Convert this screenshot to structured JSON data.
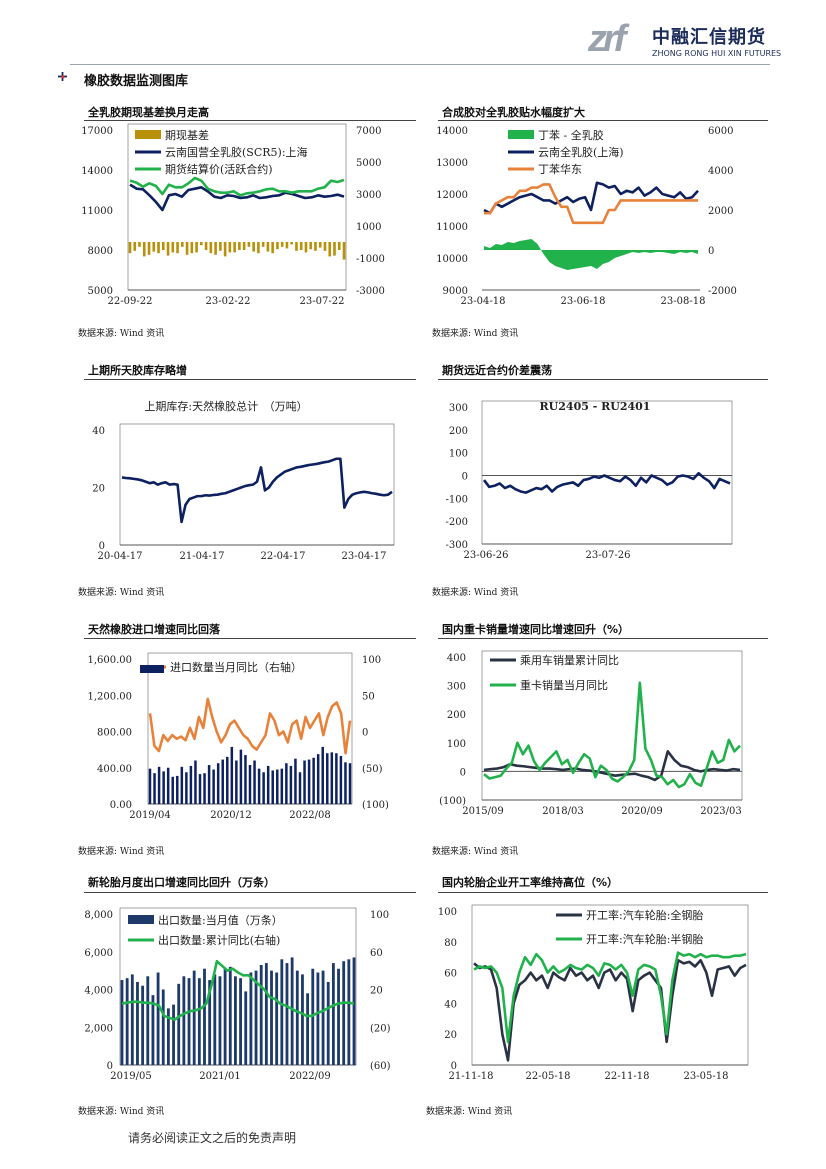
{
  "header": {
    "logo_mark": "zrf",
    "logo_cn": "中融汇信期货",
    "logo_en": "ZHONG RONG HUI XIN FUTURES",
    "section_title": "橡胶数据监测图库"
  },
  "source_label": "数据来源: Wind 资讯",
  "footer": "请务必阅读正文之后的免责声明",
  "panels": [
    {
      "title": "全乳胶期现基差换月走高"
    },
    {
      "title": "合成胶对全乳胶贴水幅度扩大"
    },
    {
      "title": "上期所天胶库存略增"
    },
    {
      "title": "期货远近合约价差震荡"
    },
    {
      "title": "天然橡胶进口增速同比回落"
    },
    {
      "title": "国内重卡销量增速同比增速回升（%）"
    },
    {
      "title": "新轮胎月度出口增速同比回升（万条）"
    },
    {
      "title": "国内轮胎企业开工率维持高位（%）"
    }
  ],
  "chart_data": [
    {
      "type": "line",
      "legend": [
        "期现基差",
        "云南国营全乳胶(SCR5):上海",
        "期货结算价(活跃合约)"
      ],
      "left_ticks": [
        "17000",
        "14000",
        "11000",
        "8000",
        "5000"
      ],
      "right_ticks": [
        "7000",
        "5000",
        "3000",
        "1000",
        "-1000",
        "-3000"
      ],
      "x_ticks": [
        "22-09-22",
        "23-02-22",
        "23-07-22"
      ],
      "ylim": [
        5000,
        17000
      ],
      "y2lim": [
        -3000,
        7000
      ],
      "series": [
        {
          "name": "期现基差",
          "axis": "right",
          "kind": "bar",
          "color": "#b8900a",
          "values": [
            -700,
            -550,
            -300,
            -900,
            -800,
            -600,
            -700,
            -500,
            -850,
            -650,
            -700,
            -300,
            -800,
            -700,
            -650,
            -200,
            -500,
            -700,
            -800,
            -550,
            -900,
            -650,
            -650,
            -500,
            -500,
            -300,
            -600,
            -700,
            -300,
            -600,
            -700,
            -450,
            -300,
            -400,
            -150,
            -550,
            -500,
            -650,
            -450,
            -550,
            -350,
            -550,
            -900,
            -850,
            -500,
            -1100
          ]
        },
        {
          "name": "云南国营全乳胶(SCR5):上海",
          "axis": "left",
          "color": "#0d2060",
          "values": [
            12900,
            12600,
            12550,
            12100,
            11600,
            11000,
            12100,
            12200,
            12000,
            12500,
            12600,
            12700,
            12400,
            12000,
            11900,
            12100,
            12050,
            11900,
            11950,
            12100,
            11900,
            11950,
            12050,
            12100,
            12300,
            12200,
            12050,
            11900,
            11950,
            12100,
            12000,
            12050,
            12150,
            12000
          ]
        },
        {
          "name": "期货结算价(活跃合约)",
          "axis": "left",
          "color": "#22b24c",
          "values": [
            13200,
            13050,
            12750,
            13000,
            12800,
            12200,
            12900,
            12700,
            12700,
            13000,
            13400,
            13200,
            12600,
            12400,
            12300,
            12300,
            12400,
            12100,
            12250,
            12300,
            12400,
            12550,
            12600,
            12400,
            12400,
            12300,
            12400,
            12400,
            12400,
            12600,
            12700,
            13200,
            13100,
            13250
          ]
        }
      ]
    },
    {
      "type": "line",
      "legend": [
        "丁苯 - 全乳胶",
        "云南全乳胶(上海)",
        "丁苯华东"
      ],
      "left_ticks": [
        "14000",
        "13000",
        "12000",
        "11000",
        "10000",
        "9000"
      ],
      "right_ticks": [
        "6000",
        "4000",
        "2000",
        "0",
        "-2000"
      ],
      "x_ticks": [
        "23-04-18",
        "23-06-18",
        "23-08-18"
      ],
      "ylim": [
        9000,
        14000
      ],
      "y2lim": [
        -2000,
        6000
      ],
      "series": [
        {
          "name": "丁苯 - 全乳胶",
          "axis": "right",
          "kind": "area",
          "color": "#22b24c",
          "values": [
            200,
            100,
            300,
            250,
            400,
            350,
            450,
            500,
            550,
            300,
            -200,
            -600,
            -800,
            -900,
            -1000,
            -950,
            -900,
            -850,
            -800,
            -950,
            -700,
            -600,
            -400,
            -300,
            -200,
            -100,
            -150,
            -100,
            -150,
            -100,
            -100,
            -150,
            -200,
            -100,
            -150,
            -100,
            -200
          ]
        },
        {
          "name": "云南全乳胶(上海)",
          "axis": "left",
          "color": "#0d2060",
          "values": [
            11500,
            11400,
            11700,
            11600,
            11700,
            11800,
            11900,
            11950,
            12000,
            11900,
            11800,
            11800,
            11700,
            11800,
            11900,
            11750,
            11850,
            11900,
            11500,
            12350,
            12300,
            12200,
            12250,
            12000,
            12100,
            12050,
            12200,
            11950,
            12050,
            12200,
            12000,
            11950,
            11900,
            12050,
            11850,
            11900,
            12100
          ]
        },
        {
          "name": "丁苯华东",
          "axis": "left",
          "color": "#e8823a",
          "values": [
            11400,
            11400,
            11700,
            11800,
            11900,
            11900,
            12100,
            12100,
            12200,
            12200,
            12300,
            12300,
            11900,
            11600,
            11600,
            11100,
            11100,
            11100,
            11100,
            11100,
            11100,
            11500,
            11500,
            11800,
            11800,
            11800,
            11800,
            11800,
            11800,
            11800,
            11800,
            11800,
            11800,
            11800,
            11800,
            11800,
            11800
          ]
        }
      ]
    },
    {
      "type": "line",
      "title": "上期库存:天然橡胶总计　（万吨）",
      "left_ticks": [
        "40",
        "20",
        "0"
      ],
      "x_ticks": [
        "20-04-17",
        "21-04-17",
        "22-04-17",
        "23-04-17"
      ],
      "ylim": [
        0,
        40
      ],
      "series": [
        {
          "name": "上期库存:天然橡胶总计",
          "axis": "left",
          "color": "#0d2060",
          "values": [
            23.5,
            23.3,
            23.2,
            23,
            22.8,
            22.5,
            22,
            21.5,
            21.8,
            21,
            21.5,
            21.8,
            21,
            21.2,
            21,
            8,
            14,
            16,
            16.5,
            17,
            17,
            17.3,
            17.2,
            17.4,
            17.5,
            17.8,
            18,
            18.5,
            19,
            19.5,
            20,
            20.5,
            20.8,
            21,
            22,
            27,
            19,
            20,
            22,
            23.5,
            24.5,
            25.5,
            26,
            26.5,
            27,
            27.2,
            27.5,
            27.8,
            28,
            28.2,
            28.5,
            28.8,
            29,
            29.5,
            30,
            30,
            13,
            16,
            17.5,
            18,
            18.3,
            18.5,
            18.3,
            18,
            17.8,
            17.5,
            17.3,
            17.5,
            18.5
          ]
        }
      ]
    },
    {
      "type": "line",
      "title": "RU2405 - RU2401",
      "left_ticks": [
        "300",
        "200",
        "100",
        "0",
        "-100",
        "-200",
        "-300"
      ],
      "x_ticks": [
        "23-06-26",
        "23-07-26"
      ],
      "ylim": [
        -300,
        300
      ],
      "series": [
        {
          "name": "RU2405 - RU2401",
          "axis": "left",
          "color": "#0d2060",
          "values": [
            -20,
            -50,
            -45,
            -35,
            -55,
            -45,
            -60,
            -70,
            -75,
            -65,
            -55,
            -60,
            -45,
            -70,
            -50,
            -40,
            -35,
            -30,
            -45,
            -20,
            -15,
            -5,
            -10,
            0,
            -10,
            -20,
            -25,
            -5,
            -20,
            -45,
            -10,
            -30,
            0,
            -10,
            -20,
            -40,
            -30,
            -5,
            0,
            -5,
            -15,
            10,
            -10,
            -25,
            -55,
            -15,
            -25,
            -35
          ]
        }
      ]
    },
    {
      "type": "bar",
      "legend": [
        "进口数量当月同比（右轴）"
      ],
      "left_ticks": [
        "1,600.00",
        "1,200.00",
        "800.00",
        "400.00",
        "0.00"
      ],
      "right_ticks": [
        "100",
        "50",
        "0",
        "(50)",
        "(100)"
      ],
      "x_ticks": [
        "2019/04",
        "2020/12",
        "2022/08"
      ],
      "ylim": [
        0,
        1600
      ],
      "y2lim": [
        -100,
        100
      ],
      "series": [
        {
          "name": "进口数量",
          "axis": "left",
          "kind": "bar",
          "color": "#0d2060",
          "values": [
            390,
            340,
            410,
            360,
            400,
            300,
            310,
            410,
            350,
            420,
            480,
            330,
            340,
            430,
            380,
            450,
            490,
            520,
            630,
            480,
            600,
            540,
            430,
            480,
            390,
            350,
            420,
            370,
            380,
            390,
            450,
            420,
            500,
            350,
            480,
            490,
            510,
            550,
            630,
            560,
            570,
            560,
            530,
            460,
            450
          ]
        },
        {
          "name": "进口数量当月同比（右轴）",
          "axis": "right",
          "color": "#e8823a",
          "values": [
            25,
            -20,
            -27,
            -5,
            -13,
            -5,
            -10,
            -7,
            -12,
            5,
            -10,
            20,
            5,
            45,
            20,
            0,
            -15,
            -5,
            10,
            15,
            5,
            -5,
            -10,
            -20,
            -25,
            -15,
            -5,
            25,
            15,
            -5,
            0,
            -15,
            10,
            15,
            -10,
            20,
            5,
            15,
            25,
            -5,
            20,
            35,
            40,
            25,
            -30,
            15
          ]
        }
      ]
    },
    {
      "type": "line",
      "legend": [
        "乘用车销量累计同比",
        "重卡销量当月同比"
      ],
      "left_ticks": [
        "400",
        "300",
        "200",
        "100",
        "0",
        "(100)"
      ],
      "x_ticks": [
        "2015/09",
        "2018/03",
        "2020/09",
        "2023/03"
      ],
      "ylim": [
        -100,
        400
      ],
      "series": [
        {
          "name": "乘用车销量累计同比",
          "axis": "left",
          "color": "#2a3344",
          "values": [
            5,
            8,
            10,
            15,
            25,
            20,
            18,
            15,
            12,
            10,
            10,
            8,
            5,
            8,
            10,
            5,
            3,
            0,
            -5,
            -10,
            -15,
            -12,
            -10,
            -8,
            -15,
            -20,
            -30,
            -15,
            70,
            40,
            20,
            15,
            5,
            0,
            5,
            8,
            5,
            3,
            8,
            5
          ]
        },
        {
          "name": "重卡销量当月同比",
          "axis": "left",
          "color": "#22b24c",
          "values": [
            -10,
            -25,
            -20,
            -15,
            10,
            30,
            100,
            60,
            90,
            35,
            5,
            30,
            50,
            70,
            25,
            40,
            -5,
            30,
            60,
            45,
            -20,
            20,
            5,
            -25,
            -35,
            -20,
            0,
            40,
            310,
            80,
            40,
            -15,
            -20,
            -45,
            -30,
            -55,
            -45,
            -10,
            -40,
            -50,
            10,
            70,
            30,
            40,
            110,
            70,
            90
          ]
        }
      ]
    },
    {
      "type": "bar",
      "legend": [
        "出口数量:当月值（万条）",
        "出口数量:累计同比(右轴)"
      ],
      "left_ticks": [
        "8,000",
        "6,000",
        "4,000",
        "2,000",
        "0"
      ],
      "right_ticks": [
        "100",
        "60",
        "20",
        "(20)",
        "(60)"
      ],
      "x_ticks": [
        "2019/05",
        "2021/01",
        "2022/09"
      ],
      "ylim": [
        0,
        8000
      ],
      "y2lim": [
        -60,
        100
      ],
      "series": [
        {
          "name": "出口数量:当月值（万条）",
          "axis": "left",
          "kind": "bar",
          "color": "#1d3a6b",
          "values": [
            4500,
            4600,
            4800,
            4400,
            4200,
            4700,
            3700,
            4900,
            4000,
            3000,
            3200,
            4300,
            4700,
            4600,
            5000,
            4600,
            5100,
            4500,
            4800,
            4700,
            5100,
            5200,
            4700,
            4600,
            3900,
            4900,
            5000,
            5300,
            5400,
            5000,
            4900,
            5600,
            5400,
            5700,
            5000,
            4800,
            3800,
            5100,
            4900,
            5000,
            4400,
            5400,
            5100,
            5500,
            5600,
            5700
          ]
        },
        {
          "name": "出口数量:累计同比(右轴)",
          "axis": "right",
          "color": "#22b24c",
          "values": [
            5,
            6,
            7,
            7,
            6,
            6,
            5,
            3,
            -8,
            -10,
            -12,
            -8,
            -5,
            -3,
            -2,
            0,
            5,
            25,
            50,
            45,
            40,
            42,
            38,
            35,
            35,
            30,
            25,
            20,
            12,
            10,
            5,
            3,
            0,
            -3,
            -5,
            -8,
            -8,
            -5,
            -3,
            0,
            3,
            5,
            6,
            6,
            5
          ]
        }
      ]
    },
    {
      "type": "line",
      "legend": [
        "开工率:汽车轮胎:全钢胎",
        "开工率:汽车轮胎:半钢胎"
      ],
      "left_ticks": [
        "100",
        "80",
        "60",
        "40",
        "20",
        "0"
      ],
      "x_ticks": [
        "21-11-18",
        "22-05-18",
        "22-11-18",
        "23-05-18"
      ],
      "ylim": [
        0,
        100
      ],
      "series": [
        {
          "name": "开工率:汽车轮胎:全钢胎",
          "axis": "left",
          "color": "#2a3344",
          "values": [
            66,
            63,
            64,
            62,
            50,
            20,
            3,
            40,
            52,
            55,
            60,
            55,
            58,
            50,
            60,
            57,
            55,
            63,
            58,
            60,
            55,
            58,
            50,
            60,
            62,
            55,
            60,
            56,
            35,
            55,
            58,
            60,
            55,
            50,
            15,
            45,
            68,
            66,
            67,
            64,
            68,
            60,
            45,
            62,
            63,
            64,
            58,
            63,
            65
          ]
        },
        {
          "name": "开工率:汽车轮胎:半钢胎",
          "axis": "left",
          "color": "#22b24c",
          "values": [
            62,
            64,
            63,
            64,
            60,
            50,
            15,
            45,
            60,
            70,
            65,
            72,
            68,
            60,
            64,
            60,
            62,
            65,
            63,
            62,
            65,
            63,
            58,
            66,
            65,
            62,
            65,
            60,
            45,
            62,
            65,
            64,
            62,
            45,
            20,
            55,
            73,
            71,
            72,
            70,
            72,
            70,
            71,
            71,
            70,
            70,
            71,
            71,
            72
          ]
        }
      ]
    }
  ]
}
